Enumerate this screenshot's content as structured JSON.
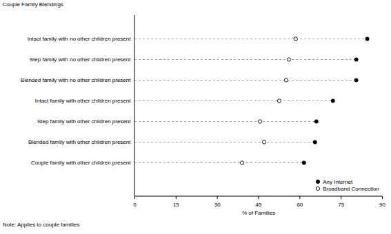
{
  "chart_data": {
    "type": "dot",
    "orientation": "horizontal",
    "y_label": "Couple Family Blendings",
    "x_label": "% of Families",
    "note": "Note: Applies to couple families",
    "categories": [
      "Intact family with no other children present",
      "Step family with no other children present",
      "Blended family with no other children present",
      "Intact family with other children present",
      "Step family with other children present",
      "Blended family with other children present",
      "Couple family with other children present"
    ],
    "series": [
      {
        "name": "Any Internet",
        "color": "#000000",
        "marker": "filled",
        "values": [
          84.5,
          80.5,
          80.5,
          72,
          66,
          65.5,
          61.5
        ]
      },
      {
        "name": "Broadband Connection",
        "color": "#000000",
        "marker": "open",
        "values": [
          58.5,
          56,
          55,
          52.5,
          45.5,
          47,
          39
        ]
      }
    ],
    "xlim": [
      0,
      90
    ],
    "xticks": [
      0,
      15,
      30,
      45,
      60,
      75,
      90
    ],
    "grid": false,
    "line_style": "dashed",
    "legend": "bottom-right"
  }
}
